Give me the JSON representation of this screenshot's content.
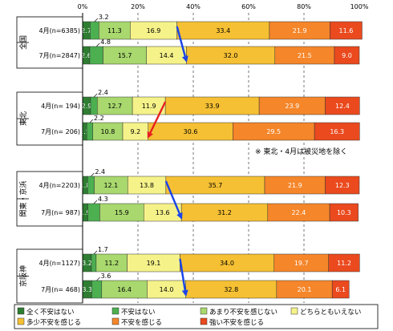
{
  "chart_data": {
    "type": "bar",
    "orientation": "horizontal",
    "stacked": true,
    "xlim": [
      0,
      100
    ],
    "x_ticks": [
      "0%",
      "20%",
      "40%",
      "60%",
      "80%",
      "100%"
    ],
    "grid": true,
    "legend_position": "bottom",
    "legend": [
      {
        "name": "全く不安はない",
        "color": "#2e7d32"
      },
      {
        "name": "不安はない",
        "color": "#4caf50"
      },
      {
        "name": "あまり不安を感じない",
        "color": "#a8d86e"
      },
      {
        "name": "どちらともいえない",
        "color": "#f5f28a"
      },
      {
        "name": "多少不安を感じる",
        "color": "#f5c033"
      },
      {
        "name": "不安を感じる",
        "color": "#f5862a"
      },
      {
        "name": "強い不安を感じる",
        "color": "#ea4a1e"
      }
    ],
    "groups": [
      {
        "label": "全国",
        "rows": [
          {
            "label": "4月(n=6385)",
            "values": [
              2.7,
              3.2,
              11.3,
              16.9,
              33.4,
              21.9,
              11.6
            ],
            "labels": [
              "2.7",
              "3.2",
              "11.3",
              "16.9",
              "33.4",
              "21.9",
              "11.6"
            ]
          },
          {
            "label": "7月(n=2847)",
            "values": [
              2.6,
              4.8,
              15.7,
              14.4,
              32.0,
              21.5,
              9.0
            ],
            "labels": [
              "2.6",
              "4.8",
              "15.7",
              "14.4",
              "32.0",
              "21.5",
              "9.0"
            ]
          }
        ]
      },
      {
        "label": "東北",
        "rows": [
          {
            "label": "4月(n= 194)",
            "values": [
              2.9,
              2.4,
              12.7,
              11.9,
              33.9,
              23.9,
              12.4
            ],
            "labels": [
              "2.9",
              "2.4",
              "12.7",
              "11.9",
              "33.9",
              "23.9",
              "12.4"
            ]
          },
          {
            "label": "7月(n= 206)",
            "values": [
              1.5,
              2.2,
              10.8,
              9.2,
              30.6,
              29.5,
              16.3
            ],
            "labels": [
              "1.5",
              "2.2",
              "10.8",
              "9.2",
              "30.6",
              "29.5",
              "16.3"
            ]
          }
        ]
      },
      {
        "label": "関東・京浜",
        "rows": [
          {
            "label": "4月(n=2203)",
            "values": [
              1.8,
              2.4,
              12.1,
              13.8,
              35.7,
              21.9,
              12.3
            ],
            "labels": [
              "1.8",
              "2.4",
              "12.1",
              "13.8",
              "35.7",
              "21.9",
              "12.3"
            ]
          },
          {
            "label": "7月(n= 987)",
            "values": [
              1.9,
              4.3,
              15.9,
              13.6,
              31.2,
              22.4,
              10.3
            ],
            "labels": [
              "1.9",
              "4.3",
              "15.9",
              "13.6",
              "31.2",
              "22.4",
              "10.3"
            ]
          }
        ]
      },
      {
        "label": "京阪神",
        "rows": [
          {
            "label": "4月(n=1127)",
            "values": [
              3.2,
              1.7,
              11.2,
              19.1,
              34.0,
              19.7,
              11.2
            ],
            "labels": [
              "3.2",
              "1.7",
              "11.2",
              "19.1",
              "34.0",
              "19.7",
              "11.2"
            ]
          },
          {
            "label": "7月(n= 468)",
            "values": [
              3.3,
              3.6,
              16.4,
              14.0,
              32.8,
              20.1,
              6.1
            ],
            "labels": [
              "3.3",
              "3.6",
              "16.4",
              "14.0",
              "32.8",
              "20.1",
              "6.1"
            ]
          }
        ]
      }
    ],
    "annotations": [
      {
        "text": "※ 東北・4月は被災地を除く"
      }
    ],
    "arrows": [
      {
        "group": 0,
        "color": "#1a44e8"
      },
      {
        "group": 1,
        "color": "#e62020"
      },
      {
        "group": 2,
        "color": "#1a44e8"
      },
      {
        "group": 3,
        "color": "#1a44e8"
      }
    ]
  }
}
